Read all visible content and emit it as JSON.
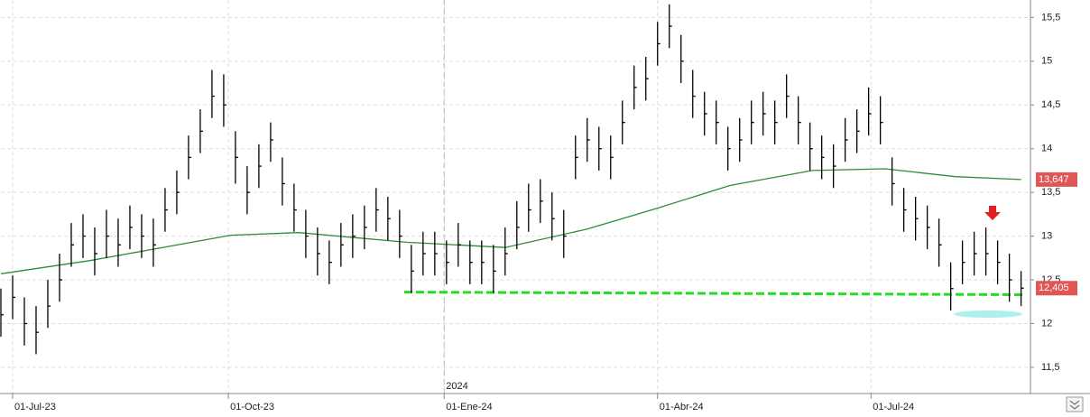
{
  "chart_data": {
    "type": "ohlc",
    "x": [
      -5,
      0,
      5,
      10,
      15,
      20,
      25,
      30,
      35,
      40,
      45,
      50,
      55,
      60,
      65,
      70,
      75,
      80,
      85,
      90,
      95,
      100,
      105,
      110,
      115,
      120,
      125,
      130,
      135,
      140,
      145,
      150,
      155,
      160,
      165,
      170,
      175,
      180,
      185,
      190,
      195,
      200,
      205,
      210,
      215,
      220,
      225,
      230,
      235,
      240,
      245,
      250,
      255,
      260,
      265,
      270,
      275,
      280,
      285,
      290,
      295,
      300,
      305,
      310,
      315,
      320,
      325,
      330,
      335,
      340,
      345,
      350,
      355,
      360,
      365,
      370,
      375,
      380,
      385,
      390,
      395,
      400,
      405,
      410,
      415,
      420,
      425,
      430
    ],
    "high": [
      12.4,
      12.55,
      12.3,
      12.2,
      12.5,
      12.8,
      13.15,
      13.25,
      13.1,
      13.3,
      13.2,
      13.35,
      13.25,
      13.2,
      13.55,
      13.75,
      14.15,
      14.45,
      14.9,
      14.85,
      14.2,
      13.8,
      14.05,
      14.3,
      13.9,
      13.6,
      13.3,
      13.1,
      12.95,
      13.15,
      13.25,
      13.35,
      13.55,
      13.45,
      13.3,
      12.9,
      13.05,
      13.05,
      12.95,
      13.15,
      12.95,
      12.95,
      12.9,
      13.1,
      13.4,
      13.6,
      13.65,
      13.5,
      13.3,
      14.15,
      14.35,
      14.25,
      14.15,
      14.55,
      14.95,
      15.05,
      15.45,
      15.65,
      15.3,
      14.9,
      14.65,
      14.55,
      14.25,
      14.35,
      14.55,
      14.65,
      14.55,
      14.85,
      14.6,
      14.3,
      14.15,
      14.05,
      14.35,
      14.45,
      14.7,
      14.6,
      13.9,
      13.55,
      13.45,
      13.35,
      13.2,
      12.7,
      12.95,
      13.05,
      13.1,
      12.95,
      12.8,
      12.6
    ],
    "low": [
      11.85,
      12.05,
      11.75,
      11.65,
      11.95,
      12.25,
      12.65,
      12.75,
      12.55,
      12.75,
      12.65,
      12.85,
      12.75,
      12.65,
      13.05,
      13.25,
      13.65,
      13.95,
      14.35,
      14.25,
      13.6,
      13.25,
      13.55,
      13.85,
      13.35,
      13.05,
      12.75,
      12.55,
      12.45,
      12.65,
      12.75,
      12.85,
      13.05,
      12.95,
      12.75,
      12.35,
      12.55,
      12.55,
      12.45,
      12.65,
      12.45,
      12.45,
      12.35,
      12.55,
      12.85,
      13.05,
      13.15,
      12.95,
      12.75,
      13.65,
      13.85,
      13.75,
      13.65,
      14.05,
      14.45,
      14.55,
      14.95,
      15.15,
      14.75,
      14.35,
      14.15,
      14.05,
      13.75,
      13.85,
      14.05,
      14.15,
      14.05,
      14.35,
      14.05,
      13.75,
      13.65,
      13.55,
      13.85,
      13.95,
      14.15,
      14.05,
      13.35,
      13.05,
      12.95,
      12.85,
      12.65,
      12.15,
      12.45,
      12.55,
      12.55,
      12.45,
      12.25,
      12.2
    ],
    "close": [
      12.1,
      12.3,
      12.0,
      11.9,
      12.2,
      12.5,
      12.9,
      13.0,
      12.8,
      13.0,
      12.9,
      13.1,
      13.0,
      12.9,
      13.3,
      13.5,
      13.9,
      14.2,
      14.6,
      14.5,
      13.9,
      13.5,
      13.8,
      14.1,
      13.6,
      13.3,
      13.0,
      12.8,
      12.7,
      12.9,
      13.0,
      13.1,
      13.3,
      13.2,
      13.0,
      12.6,
      12.8,
      12.8,
      12.7,
      12.9,
      12.7,
      12.7,
      12.6,
      12.8,
      13.1,
      13.3,
      13.4,
      13.2,
      13.0,
      13.9,
      14.1,
      14.0,
      13.9,
      14.3,
      14.7,
      14.8,
      15.2,
      15.4,
      15.0,
      14.6,
      14.4,
      14.3,
      14.0,
      14.1,
      14.3,
      14.4,
      14.3,
      14.6,
      14.3,
      14.0,
      13.9,
      13.8,
      14.1,
      14.2,
      14.4,
      14.3,
      13.6,
      13.3,
      13.2,
      13.1,
      12.9,
      12.4,
      12.7,
      12.8,
      12.8,
      12.7,
      12.5,
      12.405
    ],
    "color": "#000000",
    "close_label": {
      "value": 12.405,
      "label": "12,405"
    },
    "moving_average": {
      "color": "#2e8b3a",
      "x": [
        -5,
        33,
        93,
        122,
        168,
        210,
        245,
        275,
        306,
        341,
        372,
        402,
        430
      ],
      "values": [
        12.57,
        12.72,
        13.01,
        13.04,
        12.93,
        12.87,
        13.08,
        13.32,
        13.58,
        13.75,
        13.77,
        13.68,
        13.647
      ],
      "last_label": {
        "value": 13.647,
        "label": "13,647"
      }
    },
    "support": {
      "color": "#22dd22",
      "x": [
        167,
        431
      ],
      "values": [
        12.36,
        12.33
      ]
    },
    "xlim": [
      -5,
      434
    ],
    "xticks": [
      {
        "value": 0,
        "label": "01-Jul-23"
      },
      {
        "value": 92,
        "label": "01-Oct-23"
      },
      {
        "value": 184,
        "label": "01-Ene-24"
      },
      {
        "value": 275,
        "label": "01-Abr-24"
      },
      {
        "value": 366,
        "label": "01-Jul-24"
      }
    ],
    "year_marker": {
      "value": 184,
      "label": "2024"
    },
    "ylim": [
      11.2,
      15.7
    ],
    "yticks": [
      {
        "value": 11.5,
        "label": "11,5"
      },
      12,
      {
        "value": 12.5,
        "label": "12,5"
      },
      13,
      {
        "value": 13.5,
        "label": "13,5"
      },
      14,
      {
        "value": 14.5,
        "label": "14,5"
      },
      15,
      {
        "value": 15.5,
        "label": "15,5"
      }
    ],
    "grid": true
  }
}
